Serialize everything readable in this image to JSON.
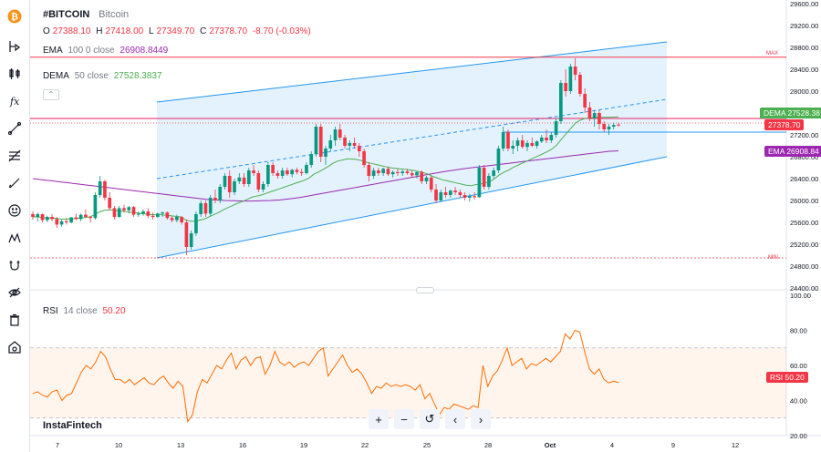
{
  "legend": {
    "symbol": "#BITCOIN",
    "name": "Bitcoin",
    "o_label": "O",
    "o_value": "27388.10",
    "h_label": "H",
    "h_value": "27418.00",
    "l_label": "L",
    "l_value": "27349.70",
    "c_label": "C",
    "c_value": "27378.70",
    "change": "-8.70 (-0.03%)",
    "ema_label": "EMA",
    "ema_params": "100 0 close",
    "ema_value": "26908.8449",
    "dema_label": "DEMA",
    "dema_params": "50 close",
    "dema_value": "27528.3837",
    "rsi_label": "RSI",
    "rsi_params": "14 close",
    "rsi_value": "50.20"
  },
  "tags": {
    "dema": "DEMA",
    "dema_val": "27528.38",
    "price_val": "27378.70",
    "ema": "EMA",
    "ema_val": "26908.84",
    "rsi": "RSI",
    "rsi_val": "50.20",
    "max": "MAX",
    "min": "MIN"
  },
  "brand": "InstaFintech",
  "colors": {
    "up": "#089981",
    "down": "#f23645",
    "ema": "#9c27b0",
    "dema": "#4caf50",
    "channel": "#2196f3",
    "rsi": "#ff6d00",
    "maxline": "#f23645"
  },
  "toolbar_icons": [
    "bitcoin-logo-icon",
    "crosshair-icon",
    "candles-icon",
    "function-icon",
    "trend-line-icon",
    "fib-icon",
    "brush-icon",
    "emoji-icon",
    "pattern-icon",
    "magnet-icon",
    "eye-icon",
    "trash-icon",
    "camera-icon"
  ],
  "chart_data": {
    "type": "candlestick",
    "price_axis": {
      "min": 24400,
      "max": 29600,
      "ticks": [
        29600,
        29200,
        28800,
        28400,
        28000,
        27600,
        27200,
        26800,
        26400,
        26000,
        25600,
        25200,
        24800,
        24400
      ]
    },
    "rsi_axis": {
      "min": 20,
      "max": 100,
      "ticks": [
        100,
        80,
        60,
        40,
        20
      ],
      "bands": [
        70,
        30
      ]
    },
    "x_ticks": [
      "7",
      "10",
      "13",
      "16",
      "19",
      "22",
      "25",
      "28",
      "Oct",
      "4",
      "9",
      "12"
    ],
    "candles": [
      [
        25750,
        25800,
        25650,
        25700
      ],
      [
        25700,
        25780,
        25620,
        25750
      ],
      [
        25750,
        25760,
        25600,
        25640
      ],
      [
        25640,
        25720,
        25600,
        25700
      ],
      [
        25700,
        25750,
        25620,
        25660
      ],
      [
        25660,
        25700,
        25500,
        25560
      ],
      [
        25560,
        25650,
        25520,
        25620
      ],
      [
        25620,
        25680,
        25560,
        25600
      ],
      [
        25600,
        25700,
        25580,
        25690
      ],
      [
        25690,
        25760,
        25640,
        25660
      ],
      [
        25660,
        25760,
        25620,
        25740
      ],
      [
        25740,
        25840,
        25680,
        25700
      ],
      [
        25700,
        25720,
        25600,
        25680
      ],
      [
        25680,
        26150,
        25650,
        26100
      ],
      [
        26100,
        26450,
        26050,
        26350
      ],
      [
        26350,
        26380,
        26000,
        26050
      ],
      [
        26050,
        26150,
        25820,
        25860
      ],
      [
        25860,
        25900,
        25650,
        25700
      ],
      [
        25700,
        25900,
        25680,
        25860
      ],
      [
        25860,
        25920,
        25780,
        25820
      ],
      [
        25820,
        25900,
        25760,
        25880
      ],
      [
        25880,
        25900,
        25700,
        25740
      ],
      [
        25740,
        25800,
        25700,
        25760
      ],
      [
        25760,
        25840,
        25720,
        25800
      ],
      [
        25800,
        25860,
        25680,
        25720
      ],
      [
        25720,
        25780,
        25650,
        25700
      ],
      [
        25700,
        25780,
        25680,
        25760
      ],
      [
        25760,
        25800,
        25700,
        25780
      ],
      [
        25780,
        25800,
        25650,
        25680
      ],
      [
        25680,
        25720,
        25600,
        25640
      ],
      [
        25640,
        25740,
        25600,
        25700
      ],
      [
        25700,
        25720,
        25560,
        25600
      ],
      [
        25600,
        25650,
        25000,
        25150
      ],
      [
        25150,
        25450,
        25100,
        25400
      ],
      [
        25400,
        25800,
        25350,
        25750
      ],
      [
        25750,
        26000,
        25700,
        25950
      ],
      [
        25950,
        26000,
        25700,
        25760
      ],
      [
        25760,
        26100,
        25720,
        26050
      ],
      [
        26050,
        26200,
        25950,
        26000
      ],
      [
        26000,
        26300,
        25950,
        26250
      ],
      [
        26250,
        26500,
        26200,
        26450
      ],
      [
        26450,
        26550,
        26050,
        26150
      ],
      [
        26150,
        26400,
        26100,
        26350
      ],
      [
        26350,
        26500,
        26300,
        26420
      ],
      [
        26420,
        26500,
        26250,
        26300
      ],
      [
        26300,
        26600,
        26250,
        26550
      ],
      [
        26550,
        26650,
        26450,
        26500
      ],
      [
        26500,
        26550,
        26150,
        26200
      ],
      [
        26200,
        26350,
        26150,
        26300
      ],
      [
        26300,
        26700,
        26250,
        26650
      ],
      [
        26650,
        26700,
        26450,
        26500
      ],
      [
        26500,
        26550,
        26400,
        26450
      ],
      [
        26450,
        26600,
        26400,
        26550
      ],
      [
        26550,
        26600,
        26450,
        26480
      ],
      [
        26480,
        26580,
        26420,
        26560
      ],
      [
        26560,
        26600,
        26480,
        26520
      ],
      [
        26520,
        26580,
        26450,
        26500
      ],
      [
        26500,
        26700,
        26480,
        26650
      ],
      [
        26650,
        26900,
        26600,
        26850
      ],
      [
        26850,
        27400,
        26800,
        27350
      ],
      [
        27350,
        27400,
        26700,
        26800
      ],
      [
        26800,
        27000,
        26650,
        26950
      ],
      [
        26950,
        27200,
        26900,
        27100
      ],
      [
        27100,
        27350,
        27000,
        27300
      ],
      [
        27300,
        27400,
        27100,
        27150
      ],
      [
        27150,
        27200,
        26950,
        27000
      ],
      [
        27000,
        27100,
        26900,
        27050
      ],
      [
        27050,
        27150,
        26950,
        27000
      ],
      [
        27000,
        27050,
        26800,
        26900
      ],
      [
        26900,
        26950,
        26600,
        26650
      ],
      [
        26650,
        26700,
        26350,
        26450
      ],
      [
        26450,
        26600,
        26400,
        26550
      ],
      [
        26550,
        26600,
        26450,
        26500
      ],
      [
        26500,
        26600,
        26450,
        26580
      ],
      [
        26580,
        26620,
        26450,
        26480
      ],
      [
        26480,
        26550,
        26420,
        26520
      ],
      [
        26520,
        26580,
        26450,
        26500
      ],
      [
        26500,
        26560,
        26450,
        26530
      ],
      [
        26530,
        26580,
        26470,
        26500
      ],
      [
        26500,
        26550,
        26420,
        26460
      ],
      [
        26460,
        26530,
        26400,
        26520
      ],
      [
        26520,
        26550,
        26300,
        26350
      ],
      [
        26350,
        26450,
        26300,
        26420
      ],
      [
        26420,
        26450,
        26150,
        26200
      ],
      [
        26200,
        26300,
        25950,
        26000
      ],
      [
        26000,
        26200,
        25980,
        26150
      ],
      [
        26150,
        26250,
        26050,
        26100
      ],
      [
        26100,
        26200,
        26050,
        26180
      ],
      [
        26180,
        26250,
        26100,
        26150
      ],
      [
        26150,
        26200,
        26050,
        26100
      ],
      [
        26100,
        26150,
        26000,
        26050
      ],
      [
        26050,
        26120,
        25980,
        26080
      ],
      [
        26080,
        26150,
        26020,
        26060
      ],
      [
        26060,
        26650,
        26050,
        26600
      ],
      [
        26600,
        26650,
        26200,
        26250
      ],
      [
        26250,
        26500,
        26200,
        26450
      ],
      [
        26450,
        26600,
        26400,
        26550
      ],
      [
        26550,
        27000,
        26500,
        26950
      ],
      [
        26950,
        27350,
        26900,
        27250
      ],
      [
        27250,
        27300,
        26900,
        26950
      ],
      [
        26950,
        27100,
        26850,
        27000
      ],
      [
        27000,
        27150,
        26900,
        27100
      ],
      [
        27100,
        27200,
        26950,
        26980
      ],
      [
        26980,
        27100,
        26900,
        27050
      ],
      [
        27050,
        27150,
        26980,
        27000
      ],
      [
        27000,
        27100,
        26950,
        27080
      ],
      [
        27080,
        27200,
        27050,
        27150
      ],
      [
        27150,
        27300,
        27050,
        27100
      ],
      [
        27100,
        27250,
        27050,
        27200
      ],
      [
        27200,
        27500,
        27150,
        27450
      ],
      [
        27450,
        28200,
        27400,
        28150
      ],
      [
        28150,
        28400,
        27900,
        28000
      ],
      [
        28000,
        28500,
        27950,
        28450
      ],
      [
        28450,
        28600,
        28200,
        28300
      ],
      [
        28300,
        28350,
        27900,
        27950
      ],
      [
        27950,
        28050,
        27600,
        27700
      ],
      [
        27700,
        27800,
        27450,
        27500
      ],
      [
        27500,
        27650,
        27350,
        27600
      ],
      [
        27600,
        27650,
        27300,
        27400
      ],
      [
        27400,
        27450,
        27250,
        27300
      ],
      [
        27300,
        27400,
        27200,
        27350
      ],
      [
        27350,
        27420,
        27300,
        27380
      ],
      [
        27388.1,
        27418,
        27349.7,
        27378.7
      ]
    ],
    "ema_series": [
      26400,
      26380,
      26360,
      26340,
      26320,
      26300,
      26280,
      26260,
      26240,
      26220,
      26200,
      26180,
      26160,
      26140,
      26120,
      26100,
      26080,
      26060,
      26040,
      26020,
      26010,
      26000,
      25995,
      25990,
      25990,
      25995,
      26000,
      26010,
      26030,
      26050,
      26080,
      26110,
      26140,
      26170,
      26200,
      26230,
      26260,
      26290,
      26320,
      26350,
      26380,
      26410,
      26440,
      26470,
      26500,
      26530,
      26555,
      26580,
      26600,
      26620,
      26640,
      26660,
      26680,
      26700,
      26720,
      26740,
      26760,
      26780,
      26800,
      26820,
      26840,
      26860,
      26880,
      26900,
      26908.84
    ],
    "dema_series": [
      25700,
      25700,
      25690,
      25680,
      25680,
      25670,
      25660,
      25660,
      25660,
      25670,
      25680,
      25690,
      25700,
      25740,
      25790,
      25820,
      25830,
      25820,
      25810,
      25800,
      25790,
      25780,
      25770,
      25760,
      25750,
      25740,
      25740,
      25740,
      25730,
      25720,
      25710,
      25700,
      25650,
      25620,
      25620,
      25640,
      25660,
      25700,
      25740,
      25780,
      25830,
      25870,
      25910,
      25950,
      25980,
      26020,
      26060,
      26080,
      26100,
      26130,
      26160,
      26190,
      26220,
      26250,
      26280,
      26310,
      26340,
      26370,
      26410,
      26480,
      26520,
      26570,
      26620,
      26680,
      26720,
      26740,
      26760,
      26760,
      26750,
      26730,
      26700,
      26680,
      26660,
      26640,
      26620,
      26600,
      26590,
      26580,
      26570,
      26560,
      26550,
      26530,
      26510,
      26480,
      26440,
      26410,
      26380,
      26360,
      26340,
      26320,
      26300,
      26280,
      26270,
      26290,
      26300,
      26320,
      26350,
      26400,
      26470,
      26520,
      26560,
      26610,
      26650,
      26690,
      26730,
      26770,
      26810,
      26850,
      26890,
      26940,
      27010,
      27120,
      27220,
      27320,
      27420,
      27470,
      27500,
      27510,
      27520,
      27520,
      27520,
      27522,
      27525,
      27528.38
    ],
    "rsi_series": [
      44,
      45,
      43,
      42,
      45,
      46,
      40,
      43,
      44,
      50,
      56,
      60,
      58,
      62,
      68,
      65,
      58,
      52,
      52,
      50,
      52,
      49,
      51,
      53,
      50,
      49,
      52,
      54,
      50,
      47,
      51,
      48,
      28,
      32,
      45,
      52,
      50,
      55,
      60,
      58,
      63,
      67,
      58,
      63,
      65,
      60,
      64,
      65,
      55,
      60,
      68,
      62,
      60,
      62,
      59,
      61,
      62,
      60,
      64,
      68,
      70,
      54,
      58,
      62,
      66,
      60,
      56,
      58,
      55,
      50,
      44,
      48,
      47,
      50,
      48,
      49,
      48,
      49,
      48,
      46,
      49,
      41,
      44,
      38,
      32,
      36,
      35,
      38,
      37,
      36,
      35,
      37,
      36,
      60,
      48,
      54,
      57,
      63,
      70,
      60,
      62,
      64,
      58,
      61,
      60,
      62,
      64,
      62,
      65,
      68,
      78,
      75,
      80,
      79,
      68,
      58,
      55,
      58,
      52,
      50,
      51,
      50.2
    ],
    "channel": {
      "upper_start": 27800,
      "upper_end": 28900,
      "lower_start": 24950,
      "lower_end": 26800,
      "mid_start": 26400,
      "mid_end": 27850
    },
    "max_level": 28620,
    "pink_level": 27500,
    "blue_level": 27250,
    "min_level": 24950
  }
}
